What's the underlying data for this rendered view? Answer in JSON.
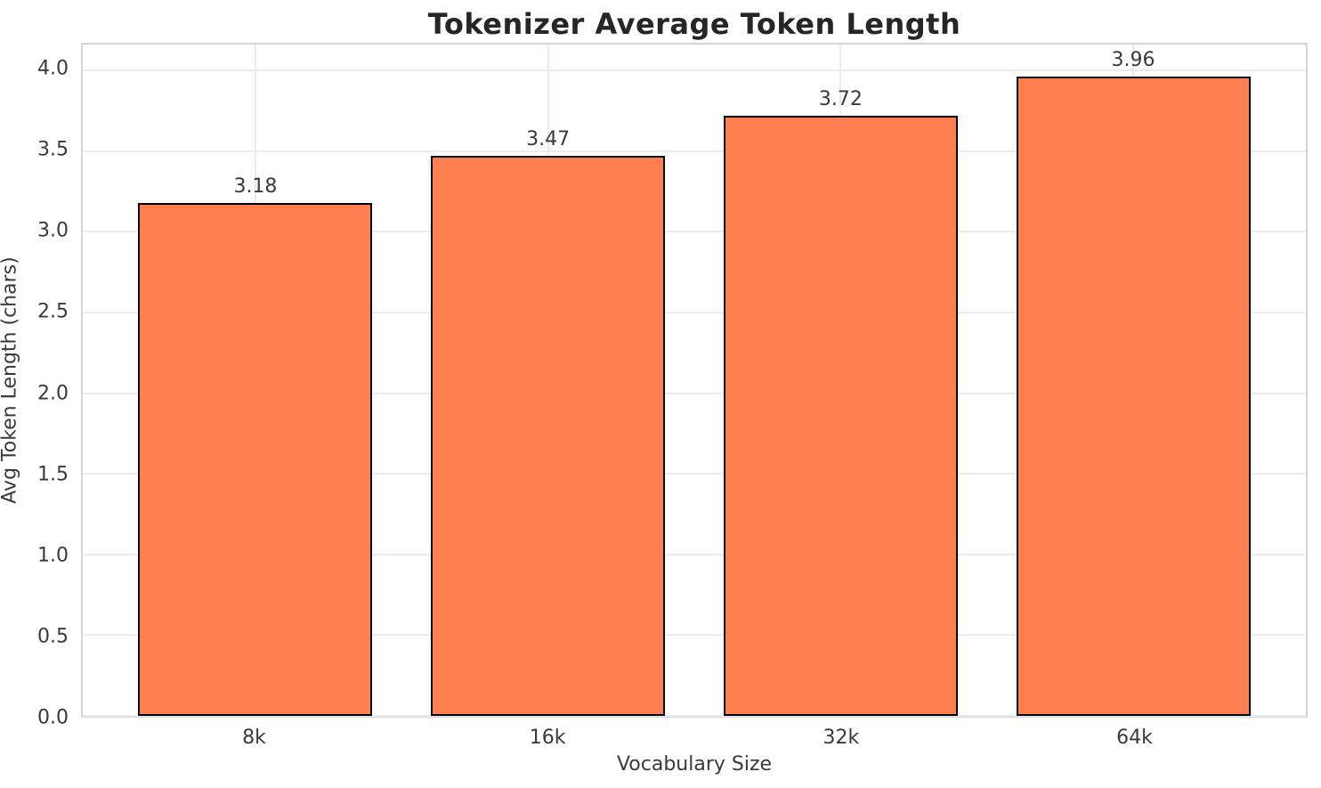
{
  "chart_data": {
    "type": "bar",
    "title": "Tokenizer Average Token Length",
    "xlabel": "Vocabulary Size",
    "ylabel": "Avg Token Length (chars)",
    "categories": [
      "8k",
      "16k",
      "32k",
      "64k"
    ],
    "values": [
      3.18,
      3.47,
      3.72,
      3.96
    ],
    "value_labels": [
      "3.18",
      "3.47",
      "3.72",
      "3.96"
    ],
    "ylim": [
      0,
      4.16
    ],
    "yticks": [
      0.0,
      0.5,
      1.0,
      1.5,
      2.0,
      2.5,
      3.0,
      3.5,
      4.0
    ],
    "ytick_labels": [
      "0.0",
      "0.5",
      "1.0",
      "1.5",
      "2.0",
      "2.5",
      "3.0",
      "3.5",
      "4.0"
    ],
    "grid": true,
    "legend": "none",
    "bar_color": "#FF7F50",
    "bar_edge_color": "#000000",
    "grid_color": "#ebebeb",
    "spine_color": "#d5d5d5",
    "text_color": "#3a3a3a",
    "title_color": "#262626"
  }
}
